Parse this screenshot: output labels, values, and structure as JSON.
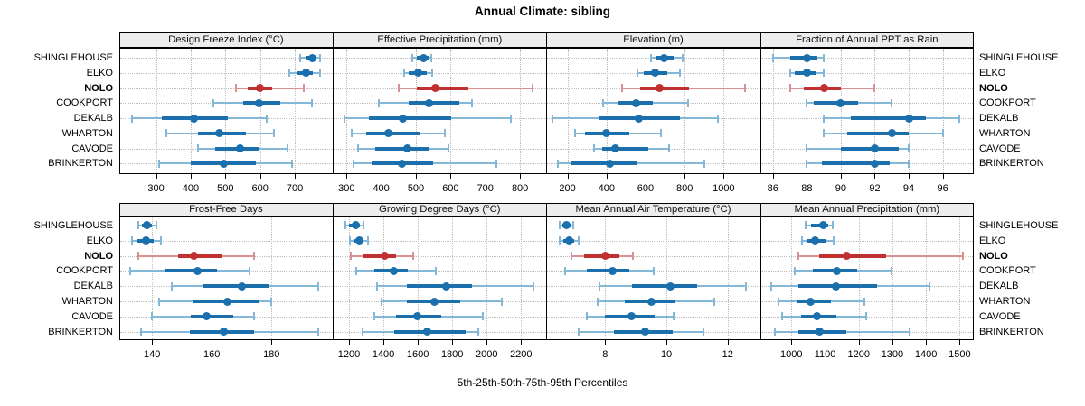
{
  "title": "Annual Climate: sibling",
  "xlabel": "5th-25th-50th-75th-95th Percentiles",
  "palette": {
    "series_dark": "#1b6fad",
    "series_light": "#85b7d9",
    "highlight_dark": "#c03030",
    "highlight_light": "#da9191",
    "strip_bg": "#ededed",
    "grid": "#bdbdbd",
    "border": "#000000"
  },
  "chart_data": {
    "type": "dotplot-percentiles",
    "title": "Annual Climate: sibling",
    "xlabel": "5th-25th-50th-75th-95th Percentiles",
    "percentile_labels": [
      "5th",
      "25th",
      "50th",
      "75th",
      "95th"
    ],
    "legend_position": "none",
    "grid": "dotted",
    "rows": [
      "SHINGLEHOUSE",
      "ELKO",
      "NOLO",
      "COOKPORT",
      "DEKALB",
      "WHARTON",
      "CAVODE",
      "BRINKERTON"
    ],
    "highlight_row": "NOLO",
    "panels": [
      {
        "title": "Design Freeze Index (°C)",
        "grid_row": 0,
        "grid_col": 0,
        "ticks": [
          300,
          400,
          500,
          600,
          700
        ],
        "domain": [
          193,
          810
        ],
        "values": [
          [
            715,
            730,
            750,
            762,
            774
          ],
          [
            685,
            708,
            733,
            753,
            773
          ],
          [
            530,
            565,
            600,
            635,
            725
          ],
          [
            465,
            550,
            597,
            657,
            750
          ],
          [
            230,
            317,
            410,
            508,
            619
          ],
          [
            330,
            420,
            482,
            560,
            640
          ],
          [
            421,
            471,
            543,
            595,
            679
          ],
          [
            309,
            400,
            495,
            588,
            692
          ]
        ]
      },
      {
        "title": "Effective Precipitation (mm)",
        "grid_row": 0,
        "grid_col": 1,
        "ticks": [
          300,
          400,
          500,
          600,
          700,
          800
        ],
        "domain": [
          261,
          876
        ],
        "values": [
          [
            489,
            502,
            522,
            539,
            545
          ],
          [
            465,
            480,
            506,
            532,
            548
          ],
          [
            450,
            502,
            555,
            652,
            836
          ],
          [
            392,
            480,
            539,
            624,
            661
          ],
          [
            295,
            365,
            462,
            601,
            774
          ],
          [
            314,
            356,
            421,
            513,
            583
          ],
          [
            334,
            382,
            475,
            537,
            593
          ],
          [
            319,
            373,
            459,
            550,
            732
          ]
        ]
      },
      {
        "title": "Elevation (m)",
        "grid_row": 0,
        "grid_col": 2,
        "ticks": [
          200,
          400,
          600,
          800,
          1000
        ],
        "domain": [
          92,
          1187
        ],
        "values": [
          [
            627,
            654,
            697,
            746,
            789
          ],
          [
            558,
            589,
            648,
            712,
            774
          ],
          [
            478,
            571,
            674,
            823,
            1109
          ],
          [
            381,
            458,
            551,
            635,
            817
          ],
          [
            124,
            366,
            566,
            774,
            971
          ],
          [
            240,
            289,
            400,
            517,
            681
          ],
          [
            338,
            378,
            446,
            612,
            720
          ],
          [
            151,
            217,
            417,
            558,
            903
          ]
        ]
      },
      {
        "title": "Fraction of Annual PPT as Rain",
        "grid_row": 0,
        "grid_col": 3,
        "ticks": [
          86,
          88,
          90,
          92,
          94,
          96
        ],
        "domain": [
          85.25,
          97.83
        ],
        "values": [
          [
            86,
            87,
            88,
            88.6,
            89
          ],
          [
            87,
            87.3,
            88,
            88.5,
            89
          ],
          [
            87,
            87.8,
            89,
            90,
            92
          ],
          [
            88,
            88.4,
            90,
            91,
            93
          ],
          [
            89,
            90.6,
            94,
            95,
            97
          ],
          [
            89,
            90.4,
            93,
            94,
            96
          ],
          [
            88,
            90,
            92,
            93.4,
            94
          ],
          [
            88,
            88.9,
            92,
            92.9,
            94
          ]
        ]
      },
      {
        "title": "Frost-Free Days",
        "grid_row": 1,
        "grid_col": 0,
        "ticks": [
          140,
          160,
          180
        ],
        "domain": [
          128.9,
          200.6
        ],
        "values": [
          [
            135.5,
            136.5,
            138.3,
            140,
            141.5
          ],
          [
            133.4,
            135.2,
            138,
            140.5,
            143
          ],
          [
            135.3,
            148.6,
            154,
            163.2,
            174.3
          ],
          [
            132.7,
            144.3,
            155.2,
            161.7,
            172.8
          ],
          [
            146.6,
            157.2,
            170,
            179,
            195.8
          ],
          [
            142.5,
            153.6,
            165.3,
            175.9,
            179.9
          ],
          [
            140,
            153.1,
            158.2,
            167.3,
            174.3
          ],
          [
            136.2,
            152.6,
            164,
            174.3,
            195.8
          ]
        ]
      },
      {
        "title": "Growing Degree Days (°C)",
        "grid_row": 1,
        "grid_col": 1,
        "ticks": [
          1200,
          1400,
          1600,
          1800,
          2000,
          2200
        ],
        "domain": [
          1107,
          2347
        ],
        "values": [
          [
            1177,
            1198,
            1239,
            1261,
            1286
          ],
          [
            1204,
            1226,
            1261,
            1286,
            1309
          ],
          [
            1209,
            1286,
            1405,
            1472,
            1575
          ],
          [
            1244,
            1349,
            1461,
            1542,
            1703
          ],
          [
            1361,
            1537,
            1765,
            1914,
            2274
          ],
          [
            1391,
            1537,
            1695,
            1844,
            2089
          ],
          [
            1349,
            1472,
            1595,
            1735,
            1975
          ],
          [
            1279,
            1461,
            1654,
            1880,
            1950
          ]
        ]
      },
      {
        "title": "Mean Annual Air Temperature (°C)",
        "grid_row": 1,
        "grid_col": 2,
        "ticks": [
          8,
          10,
          12
        ],
        "domain": [
          6.08,
          13.06
        ],
        "values": [
          [
            6.5,
            6.6,
            6.75,
            6.87,
            6.95
          ],
          [
            6.52,
            6.62,
            6.83,
            7.0,
            7.12
          ],
          [
            6.9,
            7.3,
            8.0,
            8.47,
            8.92
          ],
          [
            6.68,
            7.39,
            8.23,
            8.8,
            9.58
          ],
          [
            7.8,
            8.87,
            10.13,
            11.0,
            12.59
          ],
          [
            7.76,
            8.65,
            9.51,
            10.25,
            11.56
          ],
          [
            7.39,
            7.98,
            8.87,
            9.61,
            10.23
          ],
          [
            7.14,
            8.3,
            9.29,
            10.2,
            11.21
          ]
        ]
      },
      {
        "title": "Mean Annual Precipitation (mm)",
        "grid_row": 1,
        "grid_col": 3,
        "ticks": [
          1000,
          1100,
          1200,
          1300,
          1400,
          1500
        ],
        "domain": [
          907,
          1542
        ],
        "values": [
          [
            1043,
            1059,
            1095,
            1110,
            1124
          ],
          [
            1032,
            1046,
            1070,
            1104,
            1126
          ],
          [
            1021,
            1083,
            1164,
            1281,
            1510
          ],
          [
            1009,
            1065,
            1135,
            1196,
            1297
          ],
          [
            940,
            1021,
            1131,
            1254,
            1411
          ],
          [
            961,
            1014,
            1056,
            1117,
            1218
          ],
          [
            971,
            1030,
            1077,
            1133,
            1222
          ],
          [
            952,
            1021,
            1085,
            1164,
            1352
          ]
        ]
      }
    ]
  }
}
